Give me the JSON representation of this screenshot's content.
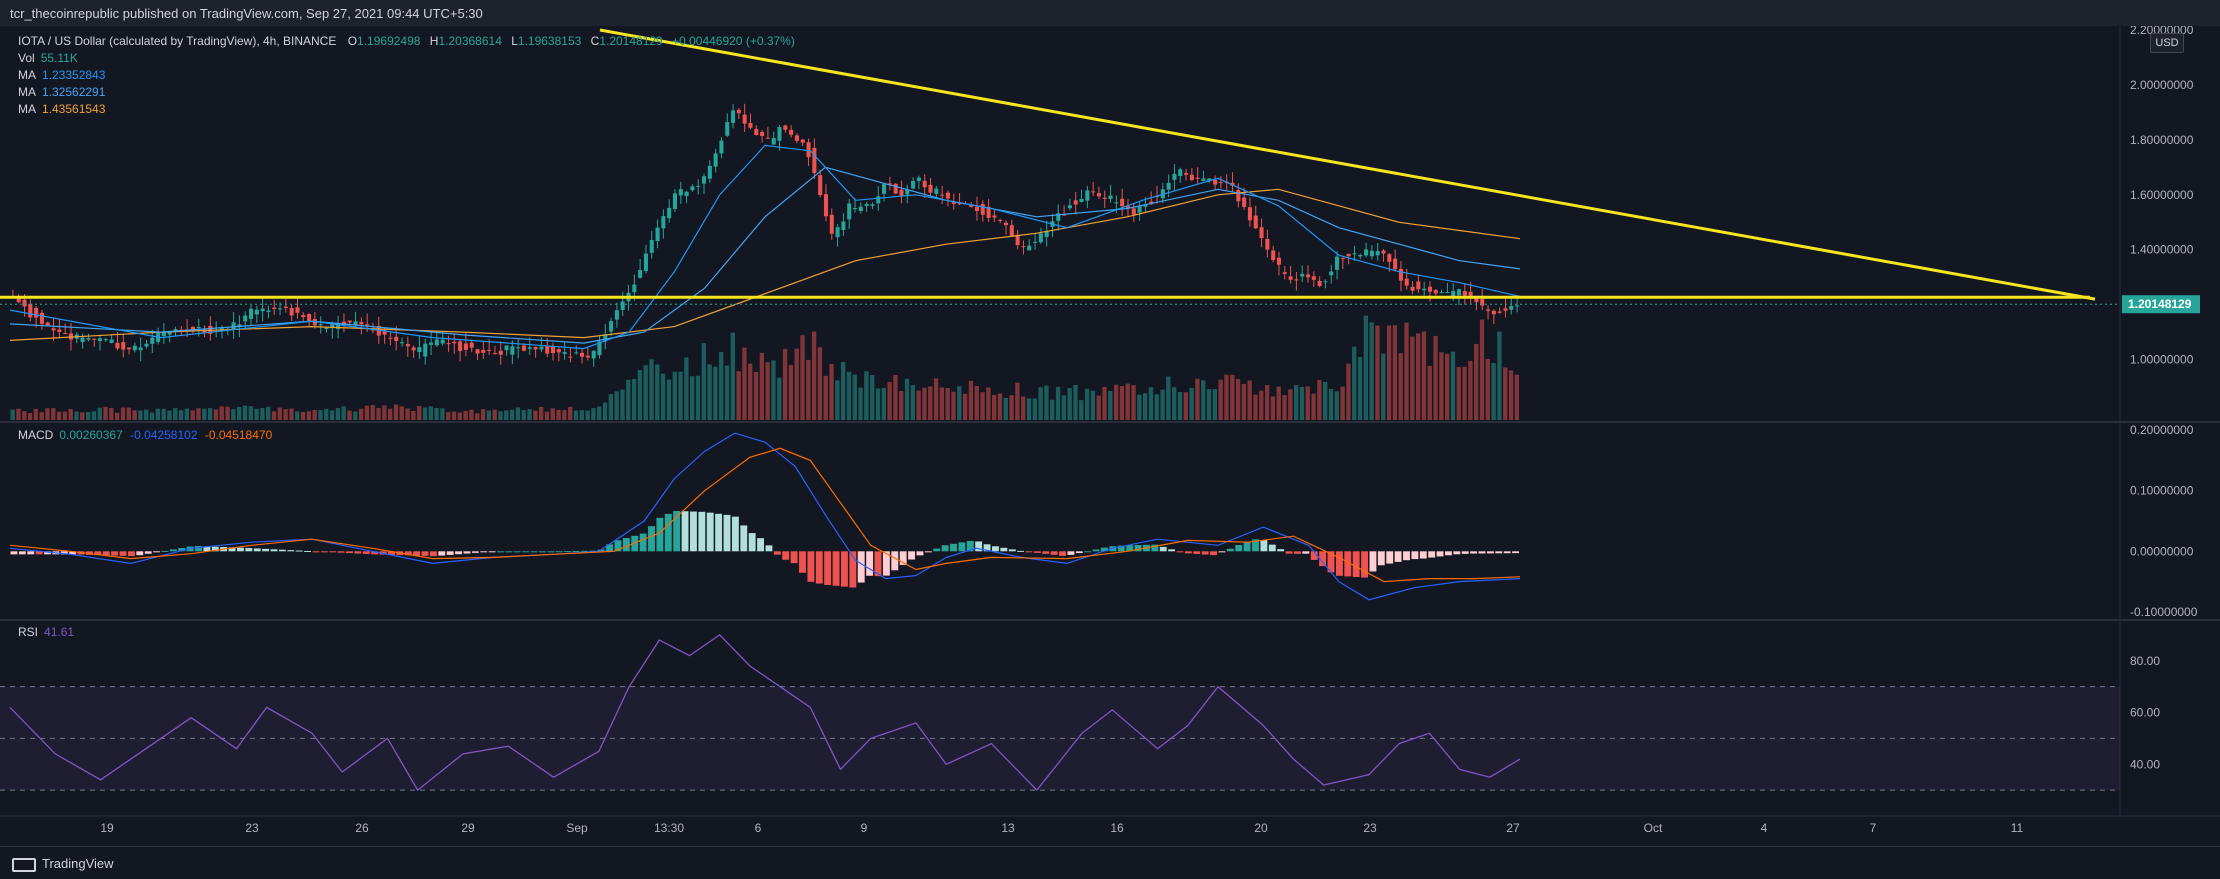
{
  "header": {
    "publisher_line": "tcr_thecoinrepublic published on TradingView.com, Sep 27, 2021 09:44 UTC+5:30"
  },
  "footer": {
    "brand": "TradingView"
  },
  "currency_badge": "USD",
  "legend": {
    "symbol": "IOTA / US Dollar (calculated by TradingView), 4h, BINANCE",
    "open_label": "O",
    "open": "1.19692498",
    "high_label": "H",
    "high": "1.20368614",
    "low_label": "L",
    "low": "1.19638153",
    "close_label": "C",
    "close": "1.20148129",
    "change": "+0.00446920 (+0.37%)",
    "vol_label": "Vol",
    "vol": "55.11K",
    "ma1_label": "MA",
    "ma1": "1.23352843",
    "ma2_label": "MA",
    "ma2": "1.32562291",
    "ma3_label": "MA",
    "ma3": "1.43561543",
    "macd_label": "MACD",
    "macd1": "0.00260367",
    "macd2": "-0.04258102",
    "macd3": "-0.04518470",
    "rsi_label": "RSI",
    "rsi": "41.61"
  },
  "colors": {
    "background": "#131722",
    "up": "#26a69a",
    "down": "#ef5350",
    "ma1": "#2196f3",
    "ma2": "#42a5f5",
    "ma3": "#f0a236",
    "trendline": "#f5e51e",
    "macd": "#2962ff",
    "signal": "#ff6d00",
    "rsi": "#7e57c2"
  },
  "chart_data": [
    {
      "type": "candlestick",
      "pane": "price",
      "ylim": [
        0.78,
        2.2
      ],
      "y_ticks": [
        "2.20000000",
        "2.00000000",
        "1.80000000",
        "1.60000000",
        "1.40000000",
        "1.20000000",
        "1.00000000"
      ],
      "x_ticks": [
        "19",
        "23",
        "26",
        "29",
        "Sep",
        "13:30",
        "6",
        "9",
        "13",
        "16",
        "20",
        "23",
        "27",
        "Oct",
        "4",
        "7",
        "11"
      ],
      "last_price_label": "1.20148129",
      "horizontal_line": 1.227,
      "trendline": [
        [
          0.0,
          2.2
        ],
        [
          1.0,
          1.22
        ]
      ],
      "close_path": [
        [
          0.0,
          1.22
        ],
        [
          0.02,
          1.14
        ],
        [
          0.04,
          1.08
        ],
        [
          0.055,
          1.06
        ],
        [
          0.08,
          1.05
        ],
        [
          0.1,
          1.1
        ],
        [
          0.12,
          1.1
        ],
        [
          0.14,
          1.12
        ],
        [
          0.16,
          1.17
        ],
        [
          0.19,
          1.18
        ],
        [
          0.205,
          1.13
        ],
        [
          0.23,
          1.12
        ],
        [
          0.255,
          1.08
        ],
        [
          0.27,
          1.03
        ],
        [
          0.285,
          1.06
        ],
        [
          0.31,
          1.04
        ],
        [
          0.34,
          1.03
        ],
        [
          0.37,
          1.03
        ],
        [
          0.385,
          1.02
        ],
        [
          0.392,
          1.06
        ],
        [
          0.4,
          1.16
        ],
        [
          0.41,
          1.24
        ],
        [
          0.42,
          1.38
        ],
        [
          0.43,
          1.5
        ],
        [
          0.44,
          1.6
        ],
        [
          0.455,
          1.62
        ],
        [
          0.465,
          1.7
        ],
        [
          0.475,
          1.88
        ],
        [
          0.48,
          1.93
        ],
        [
          0.49,
          1.85
        ],
        [
          0.505,
          1.78
        ],
        [
          0.51,
          1.85
        ],
        [
          0.52,
          1.8
        ],
        [
          0.53,
          1.75
        ],
        [
          0.537,
          1.6
        ],
        [
          0.545,
          1.45
        ],
        [
          0.555,
          1.55
        ],
        [
          0.57,
          1.55
        ],
        [
          0.58,
          1.63
        ],
        [
          0.59,
          1.6
        ],
        [
          0.6,
          1.68
        ],
        [
          0.61,
          1.62
        ],
        [
          0.625,
          1.56
        ],
        [
          0.64,
          1.55
        ],
        [
          0.66,
          1.5
        ],
        [
          0.67,
          1.4
        ],
        [
          0.68,
          1.42
        ],
        [
          0.69,
          1.48
        ],
        [
          0.7,
          1.55
        ],
        [
          0.715,
          1.62
        ],
        [
          0.73,
          1.58
        ],
        [
          0.745,
          1.52
        ],
        [
          0.76,
          1.6
        ],
        [
          0.775,
          1.7
        ],
        [
          0.79,
          1.65
        ],
        [
          0.81,
          1.62
        ],
        [
          0.82,
          1.55
        ],
        [
          0.83,
          1.45
        ],
        [
          0.84,
          1.35
        ],
        [
          0.85,
          1.28
        ],
        [
          0.86,
          1.3
        ],
        [
          0.87,
          1.26
        ],
        [
          0.88,
          1.38
        ],
        [
          0.895,
          1.4
        ],
        [
          0.91,
          1.38
        ],
        [
          0.92,
          1.32
        ],
        [
          0.925,
          1.26
        ],
        [
          0.935,
          1.27
        ],
        [
          0.95,
          1.25
        ],
        [
          0.96,
          1.24
        ],
        [
          0.97,
          1.22
        ],
        [
          0.98,
          1.16
        ],
        [
          0.99,
          1.19
        ],
        [
          1.0,
          1.2
        ]
      ],
      "ma_fast": [
        [
          0.0,
          1.18
        ],
        [
          0.1,
          1.08
        ],
        [
          0.2,
          1.14
        ],
        [
          0.28,
          1.08
        ],
        [
          0.38,
          1.04
        ],
        [
          0.41,
          1.1
        ],
        [
          0.44,
          1.32
        ],
        [
          0.47,
          1.6
        ],
        [
          0.5,
          1.78
        ],
        [
          0.53,
          1.76
        ],
        [
          0.56,
          1.58
        ],
        [
          0.6,
          1.6
        ],
        [
          0.65,
          1.55
        ],
        [
          0.7,
          1.48
        ],
        [
          0.75,
          1.58
        ],
        [
          0.8,
          1.66
        ],
        [
          0.84,
          1.56
        ],
        [
          0.88,
          1.38
        ],
        [
          0.92,
          1.32
        ],
        [
          0.96,
          1.28
        ],
        [
          1.0,
          1.23
        ]
      ],
      "ma_mid": [
        [
          0.0,
          1.13
        ],
        [
          0.1,
          1.1
        ],
        [
          0.2,
          1.14
        ],
        [
          0.3,
          1.09
        ],
        [
          0.38,
          1.06
        ],
        [
          0.42,
          1.1
        ],
        [
          0.46,
          1.26
        ],
        [
          0.5,
          1.52
        ],
        [
          0.54,
          1.7
        ],
        [
          0.58,
          1.64
        ],
        [
          0.62,
          1.58
        ],
        [
          0.68,
          1.52
        ],
        [
          0.74,
          1.55
        ],
        [
          0.8,
          1.62
        ],
        [
          0.84,
          1.58
        ],
        [
          0.88,
          1.48
        ],
        [
          0.92,
          1.42
        ],
        [
          0.96,
          1.36
        ],
        [
          1.0,
          1.33
        ]
      ],
      "ma_slow": [
        [
          0.0,
          1.07
        ],
        [
          0.1,
          1.1
        ],
        [
          0.2,
          1.12
        ],
        [
          0.3,
          1.1
        ],
        [
          0.38,
          1.08
        ],
        [
          0.44,
          1.12
        ],
        [
          0.5,
          1.24
        ],
        [
          0.56,
          1.36
        ],
        [
          0.62,
          1.42
        ],
        [
          0.68,
          1.46
        ],
        [
          0.74,
          1.52
        ],
        [
          0.8,
          1.6
        ],
        [
          0.84,
          1.62
        ],
        [
          0.88,
          1.56
        ],
        [
          0.92,
          1.5
        ],
        [
          0.96,
          1.47
        ],
        [
          1.0,
          1.44
        ]
      ],
      "volume_path": [
        [
          0.0,
          0.1
        ],
        [
          0.05,
          0.12
        ],
        [
          0.1,
          0.1
        ],
        [
          0.15,
          0.13
        ],
        [
          0.2,
          0.1
        ],
        [
          0.25,
          0.16
        ],
        [
          0.3,
          0.1
        ],
        [
          0.35,
          0.12
        ],
        [
          0.39,
          0.12
        ],
        [
          0.42,
          0.55
        ],
        [
          0.44,
          0.5
        ],
        [
          0.47,
          0.85
        ],
        [
          0.5,
          0.6
        ],
        [
          0.53,
          0.8
        ],
        [
          0.56,
          0.5
        ],
        [
          0.6,
          0.4
        ],
        [
          0.65,
          0.35
        ],
        [
          0.7,
          0.3
        ],
        [
          0.75,
          0.35
        ],
        [
          0.8,
          0.45
        ],
        [
          0.84,
          0.3
        ],
        [
          0.88,
          0.4
        ],
        [
          0.9,
          0.95
        ],
        [
          0.93,
          0.85
        ],
        [
          0.96,
          0.75
        ],
        [
          0.98,
          0.95
        ],
        [
          1.0,
          0.65
        ]
      ]
    },
    {
      "type": "line",
      "pane": "macd",
      "ylim": [
        -0.11,
        0.21
      ],
      "y_ticks": [
        "0.20000000",
        "0.10000000",
        "0.00000000",
        "-0.10000000"
      ],
      "series": [
        {
          "name": "MACD",
          "points": [
            [
              0.0,
              0.005
            ],
            [
              0.04,
              -0.005
            ],
            [
              0.08,
              -0.02
            ],
            [
              0.12,
              0.005
            ],
            [
              0.16,
              0.015
            ],
            [
              0.2,
              0.02
            ],
            [
              0.24,
              0.0
            ],
            [
              0.28,
              -0.02
            ],
            [
              0.32,
              -0.01
            ],
            [
              0.36,
              -0.005
            ],
            [
              0.39,
              0.0
            ],
            [
              0.42,
              0.05
            ],
            [
              0.44,
              0.12
            ],
            [
              0.46,
              0.165
            ],
            [
              0.48,
              0.195
            ],
            [
              0.5,
              0.18
            ],
            [
              0.52,
              0.14
            ],
            [
              0.54,
              0.06
            ],
            [
              0.56,
              -0.015
            ],
            [
              0.58,
              -0.045
            ],
            [
              0.6,
              -0.04
            ],
            [
              0.62,
              -0.01
            ],
            [
              0.64,
              0.005
            ],
            [
              0.67,
              -0.01
            ],
            [
              0.7,
              -0.02
            ],
            [
              0.73,
              0.005
            ],
            [
              0.76,
              0.02
            ],
            [
              0.8,
              0.01
            ],
            [
              0.83,
              0.04
            ],
            [
              0.86,
              0.01
            ],
            [
              0.88,
              -0.05
            ],
            [
              0.9,
              -0.08
            ],
            [
              0.93,
              -0.06
            ],
            [
              0.96,
              -0.05
            ],
            [
              1.0,
              -0.045
            ]
          ]
        },
        {
          "name": "Signal",
          "points": [
            [
              0.0,
              0.01
            ],
            [
              0.04,
              0.0
            ],
            [
              0.08,
              -0.012
            ],
            [
              0.12,
              -0.004
            ],
            [
              0.16,
              0.01
            ],
            [
              0.2,
              0.02
            ],
            [
              0.24,
              0.005
            ],
            [
              0.28,
              -0.012
            ],
            [
              0.32,
              -0.01
            ],
            [
              0.36,
              -0.005
            ],
            [
              0.4,
              0.0
            ],
            [
              0.43,
              0.03
            ],
            [
              0.46,
              0.1
            ],
            [
              0.49,
              0.155
            ],
            [
              0.51,
              0.17
            ],
            [
              0.53,
              0.15
            ],
            [
              0.55,
              0.08
            ],
            [
              0.57,
              0.01
            ],
            [
              0.6,
              -0.03
            ],
            [
              0.62,
              -0.02
            ],
            [
              0.65,
              -0.01
            ],
            [
              0.7,
              -0.012
            ],
            [
              0.74,
              0.0
            ],
            [
              0.78,
              0.018
            ],
            [
              0.82,
              0.015
            ],
            [
              0.85,
              0.025
            ],
            [
              0.88,
              -0.01
            ],
            [
              0.91,
              -0.05
            ],
            [
              0.94,
              -0.045
            ],
            [
              0.97,
              -0.045
            ],
            [
              1.0,
              -0.042
            ]
          ]
        }
      ]
    },
    {
      "type": "line",
      "pane": "rsi",
      "ylim": [
        20,
        95
      ],
      "y_ticks": [
        "80.00",
        "60.00",
        "40.00"
      ],
      "bands": [
        70,
        50,
        30
      ],
      "series": [
        {
          "name": "RSI",
          "points": [
            [
              0.0,
              62
            ],
            [
              0.03,
              44
            ],
            [
              0.06,
              34
            ],
            [
              0.09,
              46
            ],
            [
              0.12,
              58
            ],
            [
              0.15,
              46
            ],
            [
              0.17,
              62
            ],
            [
              0.2,
              52
            ],
            [
              0.22,
              37
            ],
            [
              0.25,
              50
            ],
            [
              0.27,
              30
            ],
            [
              0.3,
              44
            ],
            [
              0.33,
              47
            ],
            [
              0.36,
              35
            ],
            [
              0.39,
              45
            ],
            [
              0.41,
              70
            ],
            [
              0.43,
              88
            ],
            [
              0.45,
              82
            ],
            [
              0.47,
              90
            ],
            [
              0.49,
              78
            ],
            [
              0.51,
              70
            ],
            [
              0.53,
              62
            ],
            [
              0.55,
              38
            ],
            [
              0.57,
              50
            ],
            [
              0.6,
              56
            ],
            [
              0.62,
              40
            ],
            [
              0.65,
              48
            ],
            [
              0.68,
              30
            ],
            [
              0.71,
              52
            ],
            [
              0.73,
              61
            ],
            [
              0.76,
              46
            ],
            [
              0.78,
              55
            ],
            [
              0.8,
              70
            ],
            [
              0.83,
              55
            ],
            [
              0.85,
              42
            ],
            [
              0.87,
              32
            ],
            [
              0.9,
              36
            ],
            [
              0.92,
              48
            ],
            [
              0.94,
              52
            ],
            [
              0.96,
              38
            ],
            [
              0.98,
              35
            ],
            [
              1.0,
              42
            ]
          ]
        }
      ]
    }
  ]
}
